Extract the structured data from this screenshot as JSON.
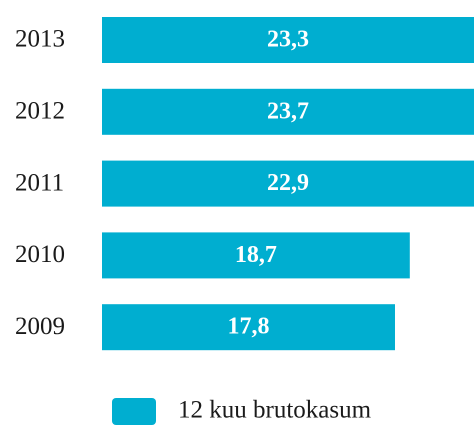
{
  "chart_data": {
    "type": "bar",
    "orientation": "horizontal",
    "categories": [
      "2013",
      "2012",
      "2011",
      "2010",
      "2009"
    ],
    "series": [
      {
        "name": "12 kuu brutokasum",
        "color": "#00aed0",
        "values": [
          23.3,
          23.7,
          22.9,
          18.7,
          17.8
        ],
        "value_labels": [
          "23,3",
          "23,7",
          "22,9",
          "18,7",
          "17,8"
        ]
      }
    ],
    "xlim": [
      0,
      22.6
    ]
  }
}
